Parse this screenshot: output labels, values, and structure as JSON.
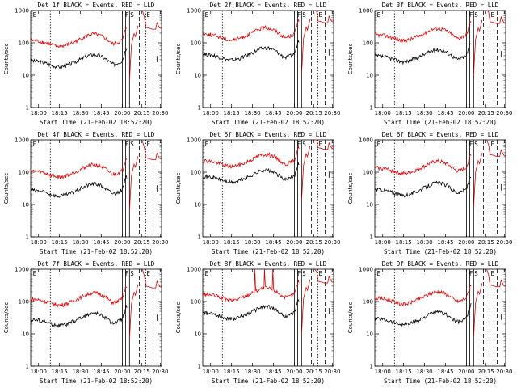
{
  "figure": {
    "background": "#ffffff",
    "colors": {
      "events": "#000000",
      "lld": "#e00000"
    }
  },
  "chart_data": [
    {
      "type": "line",
      "title": "Det 1f BLACK = Events, RED = LLD",
      "ylabel": "Counts/sec",
      "xlabel": "Start Time (21-Feb-02 18:52:20)",
      "yscale": "log",
      "ylim": [
        1,
        1000
      ],
      "yticks": [
        "1",
        "10",
        "100",
        "1000"
      ],
      "xticks": [
        "18:00",
        "18:15",
        "18:30",
        "18:45",
        "20:00",
        "20:15",
        "20:30"
      ],
      "annotations": [
        "E",
        "F",
        "S",
        "E"
      ],
      "series": [
        {
          "name": "BLACK = Events",
          "color": "black",
          "base": 28,
          "spikes": 0
        },
        {
          "name": "RED = LLD",
          "color": "red",
          "base": 120,
          "spikes": 0
        }
      ]
    },
    {
      "type": "line",
      "title": "Det 2f BLACK = Events, RED = LLD",
      "ylabel": "Counts/sec",
      "xlabel": "Start Time (21-Feb-02 18:52:20)",
      "yscale": "log",
      "ylim": [
        1,
        1000
      ],
      "yticks": [
        "1",
        "10",
        "100",
        "1000"
      ],
      "xticks": [
        "18:00",
        "18:15",
        "18:30",
        "18:45",
        "20:00",
        "20:15",
        "20:30"
      ],
      "annotations": [
        "E",
        "F",
        "S",
        "E"
      ],
      "series": [
        {
          "name": "BLACK = Events",
          "color": "black",
          "base": 45,
          "spikes": 0
        },
        {
          "name": "RED = LLD",
          "color": "red",
          "base": 190,
          "spikes": 0
        }
      ]
    },
    {
      "type": "line",
      "title": "Det 3f BLACK = Events, RED = LLD",
      "ylabel": "Counts/sec",
      "xlabel": "Start Time (21-Feb-02 18:52:20)",
      "yscale": "log",
      "ylim": [
        1,
        1000
      ],
      "yticks": [
        "1",
        "10",
        "100",
        "1000"
      ],
      "xticks": [
        "18:00",
        "18:15",
        "18:30",
        "18:45",
        "20:00",
        "20:15",
        "20:30"
      ],
      "annotations": [
        "E",
        "F",
        "S",
        "E"
      ],
      "series": [
        {
          "name": "BLACK = Events",
          "color": "black",
          "base": 40,
          "spikes": 0
        },
        {
          "name": "RED = LLD",
          "color": "red",
          "base": 180,
          "spikes": 0
        }
      ]
    },
    {
      "type": "line",
      "title": "Det 4f BLACK = Events, RED = LLD",
      "ylabel": "Counts/sec",
      "xlabel": "Start Time (21-Feb-02 18:52:20)",
      "yscale": "log",
      "ylim": [
        1,
        1000
      ],
      "yticks": [
        "1",
        "10",
        "100",
        "1000"
      ],
      "xticks": [
        "18:00",
        "18:15",
        "18:30",
        "18:45",
        "20:00",
        "20:15",
        "20:30"
      ],
      "annotations": [
        "E",
        "F",
        "S",
        "E"
      ],
      "series": [
        {
          "name": "BLACK = Events",
          "color": "black",
          "base": 28,
          "spikes": 0
        },
        {
          "name": "RED = LLD",
          "color": "red",
          "base": 110,
          "spikes": 0
        }
      ]
    },
    {
      "type": "line",
      "title": "Det 5f BLACK = Events, RED = LLD",
      "ylabel": "Counts/sec",
      "xlabel": "Start Time (21-Feb-02 18:52:20)",
      "yscale": "log",
      "ylim": [
        1,
        1000
      ],
      "yticks": [
        "1",
        "10",
        "100",
        "1000"
      ],
      "xticks": [
        "18:00",
        "18:15",
        "18:30",
        "18:45",
        "20:00",
        "20:15",
        "20:30"
      ],
      "annotations": [
        "E",
        "F",
        "S",
        "E"
      ],
      "series": [
        {
          "name": "BLACK = Events",
          "color": "black",
          "base": 75,
          "spikes": 0
        },
        {
          "name": "RED = LLD",
          "color": "red",
          "base": 230,
          "spikes": 0
        }
      ]
    },
    {
      "type": "line",
      "title": "Det 6f BLACK = Events, RED = LLD",
      "ylabel": "Counts/sec",
      "xlabel": "Start Time (21-Feb-02 18:52:20)",
      "yscale": "log",
      "ylim": [
        1,
        1000
      ],
      "yticks": [
        "1",
        "10",
        "100",
        "1000"
      ],
      "xticks": [
        "18:00",
        "18:15",
        "18:30",
        "18:45",
        "20:00",
        "20:15",
        "20:30"
      ],
      "annotations": [
        "E",
        "F",
        "S",
        "E"
      ],
      "series": [
        {
          "name": "BLACK = Events",
          "color": "black",
          "base": 30,
          "spikes": 0
        },
        {
          "name": "RED = LLD",
          "color": "red",
          "base": 140,
          "spikes": 0
        }
      ]
    },
    {
      "type": "line",
      "title": "Det 7f BLACK = Events, RED = LLD",
      "ylabel": "Counts/sec",
      "xlabel": "Start Time (21-Feb-02 18:52:20)",
      "yscale": "log",
      "ylim": [
        1,
        1000
      ],
      "yticks": [
        "1",
        "10",
        "100",
        "1000"
      ],
      "xticks": [
        "18:00",
        "18:15",
        "18:30",
        "18:45",
        "20:00",
        "20:15",
        "20:30"
      ],
      "annotations": [
        "E",
        "F",
        "S",
        "E"
      ],
      "series": [
        {
          "name": "BLACK = Events",
          "color": "black",
          "base": 28,
          "spikes": 0
        },
        {
          "name": "RED = LLD",
          "color": "red",
          "base": 120,
          "spikes": 0
        }
      ]
    },
    {
      "type": "line",
      "title": "Det 8f BLACK = Events, RED = LLD",
      "ylabel": "Counts/sec",
      "xlabel": "Start Time (21-Feb-02 18:52:20)",
      "yscale": "log",
      "ylim": [
        1,
        1000
      ],
      "yticks": [
        "1",
        "10",
        "100",
        "1000"
      ],
      "xticks": [
        "18:00",
        "18:15",
        "18:30",
        "18:45",
        "20:00",
        "20:15",
        "20:30"
      ],
      "annotations": [
        "E",
        "F",
        "S",
        "E"
      ],
      "series": [
        {
          "name": "BLACK = Events",
          "color": "black",
          "base": 45,
          "spikes": 0
        },
        {
          "name": "RED = LLD",
          "color": "red",
          "base": 170,
          "spikes": 3
        }
      ]
    },
    {
      "type": "line",
      "title": "Det 9f BLACK = Events, RED = LLD",
      "ylabel": "Counts/sec",
      "xlabel": "Start Time (21-Feb-02 18:52:20)",
      "yscale": "log",
      "ylim": [
        1,
        1000
      ],
      "yticks": [
        "1",
        "10",
        "100",
        "1000"
      ],
      "xticks": [
        "18:00",
        "18:15",
        "18:30",
        "18:45",
        "20:00",
        "20:15",
        "20:30"
      ],
      "annotations": [
        "E",
        "F",
        "S",
        "E"
      ],
      "series": [
        {
          "name": "BLACK = Events",
          "color": "black",
          "base": 30,
          "spikes": 0
        },
        {
          "name": "RED = LLD",
          "color": "red",
          "base": 130,
          "spikes": 0
        }
      ]
    }
  ]
}
